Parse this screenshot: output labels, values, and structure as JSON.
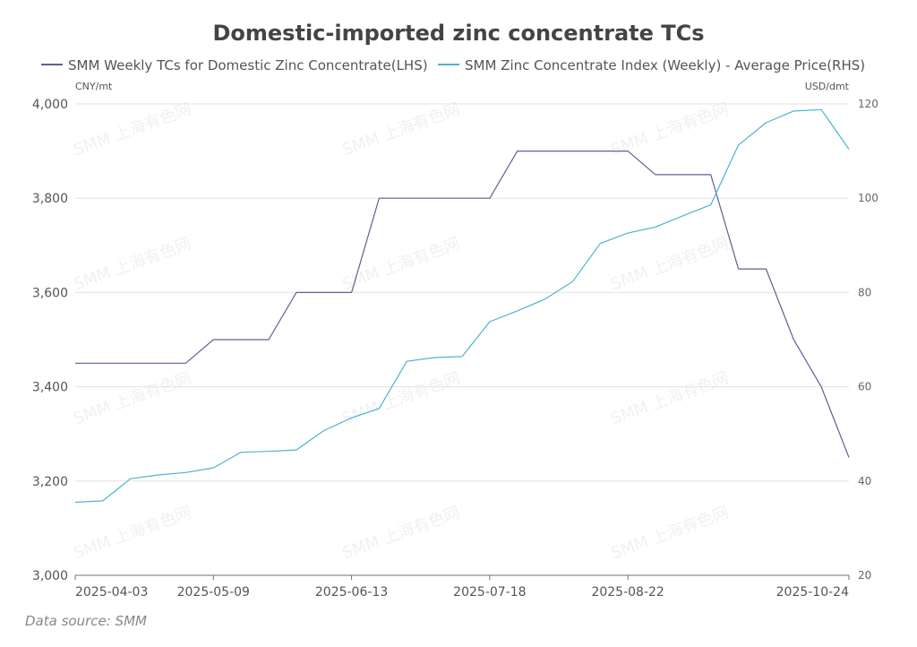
{
  "chart_data": {
    "type": "line",
    "title": "Domestic-imported zinc concentrate TCs",
    "left_unit": "CNY/mt",
    "right_unit": "USD/dmt",
    "source": "Data source:  SMM",
    "watermark": "SMM 上海有色网",
    "left_axis": {
      "ylim": [
        3000,
        4000
      ],
      "ticks": [
        "3,000",
        "3,200",
        "3,400",
        "3,600",
        "3,800",
        "4,000"
      ],
      "tick_values": [
        3000,
        3200,
        3400,
        3600,
        3800,
        4000
      ]
    },
    "right_axis": {
      "ylim": [
        20,
        120
      ],
      "ticks": [
        "20",
        "40",
        "60",
        "80",
        "100",
        "120"
      ],
      "tick_values": [
        20,
        40,
        60,
        80,
        100,
        120
      ]
    },
    "x_dates": [
      "2025-04-03",
      "2025-04-10",
      "2025-04-17",
      "2025-04-24",
      "2025-04-30",
      "2025-05-09",
      "2025-05-16",
      "2025-05-23",
      "2025-05-30",
      "2025-06-06",
      "2025-06-13",
      "2025-06-20",
      "2025-06-27",
      "2025-07-04",
      "2025-07-11",
      "2025-07-18",
      "2025-07-25",
      "2025-08-01",
      "2025-08-08",
      "2025-08-15",
      "2025-08-22",
      "2025-08-29",
      "2025-09-05",
      "2025-09-12",
      "2025-09-19",
      "2025-09-26",
      "2025-10-10",
      "2025-10-17",
      "2025-10-24"
    ],
    "x_tick_labels": [
      "2025-04-03",
      "2025-05-09",
      "2025-06-13",
      "2025-07-18",
      "2025-08-22",
      "2025-10-24"
    ],
    "x_tick_indices": [
      0,
      5,
      10,
      15,
      20,
      28
    ],
    "grid": true,
    "legend_position": "top",
    "series": [
      {
        "name": "SMM Weekly TCs for Domestic Zinc Concentrate(LHS)",
        "axis": "left",
        "color": "#5b6199",
        "values": [
          3450,
          3450,
          3450,
          3450,
          3450,
          3500,
          3500,
          3500,
          3600,
          3600,
          3600,
          3800,
          3800,
          3800,
          3800,
          3800,
          3900,
          3900,
          3900,
          3900,
          3900,
          3850,
          3850,
          3850,
          3650,
          3650,
          3500,
          3400,
          3250
        ]
      },
      {
        "name": "SMM Zinc Concentrate Index (Weekly) - Average Price(RHS)",
        "axis": "right",
        "color": "#4db3d0",
        "values": [
          35.5,
          35.8,
          40.5,
          41.3,
          41.8,
          42.8,
          46.1,
          46.3,
          46.6,
          50.7,
          53.4,
          55.4,
          65.4,
          66.2,
          66.4,
          73.8,
          76.1,
          78.6,
          82.3,
          90.4,
          92.6,
          93.9,
          96.3,
          98.6,
          111.3,
          116.0,
          118.5,
          118.8,
          110.4
        ]
      }
    ]
  }
}
